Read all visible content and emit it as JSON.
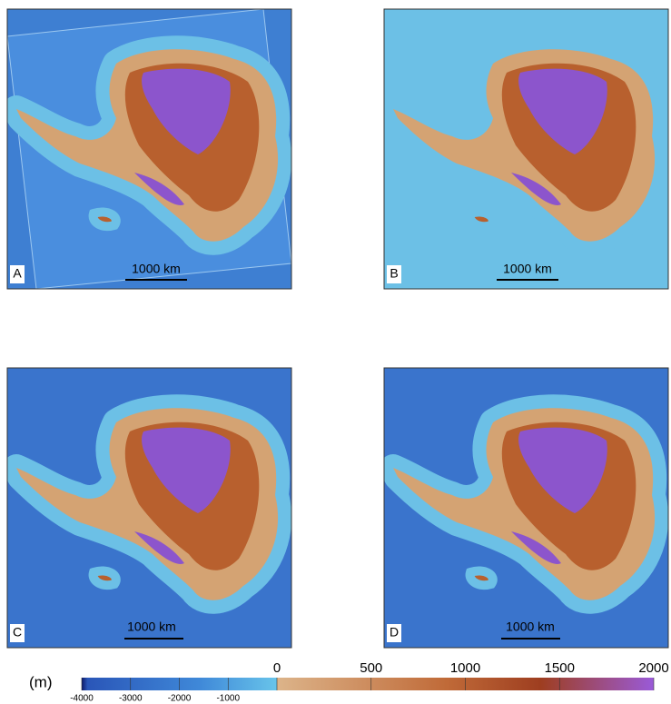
{
  "panels": [
    {
      "label": "A",
      "scale_bar": "1000 km"
    },
    {
      "label": "B",
      "scale_bar": "1000 km"
    },
    {
      "label": "C",
      "scale_bar": "1000 km"
    },
    {
      "label": "D",
      "scale_bar": "1000 km"
    }
  ],
  "colorbar": {
    "unit": "(m)",
    "negative": {
      "range": [
        -4000,
        0
      ],
      "ticks": [
        -4000,
        -3000,
        -2000,
        -1000
      ]
    },
    "positive": {
      "range": [
        0,
        2000
      ],
      "ticks": [
        0,
        500,
        1000,
        1500,
        2000
      ]
    }
  }
}
